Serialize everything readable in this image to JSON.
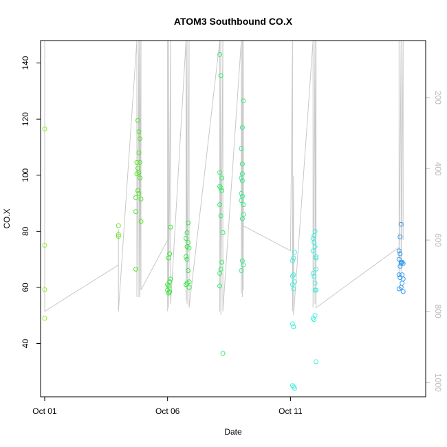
{
  "chart_data": {
    "type": "scatter",
    "title": "ATOM3 Southbound CO.X",
    "xlabel": "Date",
    "ylabel": "CO.X",
    "x_ticks": [
      "Oct 01",
      "Oct 06",
      "Oct 11"
    ],
    "y_ticks": [
      "40",
      "60",
      "80",
      "100",
      "120",
      "140"
    ],
    "y2_ticks": [
      "200",
      "400",
      "600",
      "800",
      "1000"
    ],
    "y2_note": "secondary axis (pressure, inverted) drawn in light grey",
    "xlim": [
      "2016-09-30T20:00",
      "2016-10-16T12:00"
    ],
    "ylim": [
      21,
      148
    ],
    "y2lim": [
      40,
      1040
    ],
    "grid": false,
    "points": [
      {
        "x": "2016-10-01T00:00",
        "y": 116.5,
        "c": "#88ee22"
      },
      {
        "x": "2016-10-01T00:00",
        "y": 75.0,
        "c": "#88ee22"
      },
      {
        "x": "2016-10-01T00:00",
        "y": 59.2,
        "c": "#88ee22"
      },
      {
        "x": "2016-10-01T00:00",
        "y": 49.0,
        "c": "#88ee22"
      },
      {
        "x": "2016-10-04T00:00",
        "y": 82.0,
        "c": "#66e622"
      },
      {
        "x": "2016-10-04T00:00",
        "y": 78.8,
        "c": "#66e622"
      },
      {
        "x": "2016-10-04T00:00",
        "y": 78.2,
        "c": "#66e622"
      },
      {
        "x": "2016-10-04T19:00",
        "y": 119.5,
        "c": "#4ee622"
      },
      {
        "x": "2016-10-04T20:00",
        "y": 115.5,
        "c": "#4ee622"
      },
      {
        "x": "2016-10-04T21:00",
        "y": 113.0,
        "c": "#4ee622"
      },
      {
        "x": "2016-10-04T20:00",
        "y": 108.0,
        "c": "#4ee622"
      },
      {
        "x": "2016-10-04T18:00",
        "y": 104.5,
        "c": "#4ee622"
      },
      {
        "x": "2016-10-04T21:00",
        "y": 104.5,
        "c": "#4ee622"
      },
      {
        "x": "2016-10-04T19:00",
        "y": 102.5,
        "c": "#4ee622"
      },
      {
        "x": "2016-10-04T20:00",
        "y": 101.0,
        "c": "#4ee622"
      },
      {
        "x": "2016-10-04T18:00",
        "y": 100.5,
        "c": "#4ee622"
      },
      {
        "x": "2016-10-04T21:00",
        "y": 99.0,
        "c": "#4ee622"
      },
      {
        "x": "2016-10-04T19:00",
        "y": 94.5,
        "c": "#4ee622"
      },
      {
        "x": "2016-10-04T20:00",
        "y": 93.5,
        "c": "#4ee622"
      },
      {
        "x": "2016-10-04T17:00",
        "y": 92.0,
        "c": "#4ee622"
      },
      {
        "x": "2016-10-04T22:00",
        "y": 91.5,
        "c": "#4ee622"
      },
      {
        "x": "2016-10-04T17:00",
        "y": 87.0,
        "c": "#4ee622"
      },
      {
        "x": "2016-10-04T22:00",
        "y": 83.5,
        "c": "#4ee622"
      },
      {
        "x": "2016-10-04T17:00",
        "y": 66.5,
        "c": "#4ee622"
      },
      {
        "x": "2016-10-06T03:00",
        "y": 81.5,
        "c": "#33e633"
      },
      {
        "x": "2016-10-06T02:00",
        "y": 72.0,
        "c": "#33e633"
      },
      {
        "x": "2016-10-06T01:00",
        "y": 70.5,
        "c": "#33e633"
      },
      {
        "x": "2016-10-06T03:00",
        "y": 63.0,
        "c": "#33e633"
      },
      {
        "x": "2016-10-06T02:00",
        "y": 62.0,
        "c": "#33e633"
      },
      {
        "x": "2016-10-06T00:00",
        "y": 61.0,
        "c": "#33e633"
      },
      {
        "x": "2016-10-06T01:00",
        "y": 60.5,
        "c": "#33e633"
      },
      {
        "x": "2016-10-06T00:00",
        "y": 59.0,
        "c": "#33e633"
      },
      {
        "x": "2016-10-06T02:00",
        "y": 58.5,
        "c": "#33e633"
      },
      {
        "x": "2016-10-06T01:00",
        "y": 58.0,
        "c": "#33e633"
      },
      {
        "x": "2016-10-06T20:00",
        "y": 83.0,
        "c": "#33e644"
      },
      {
        "x": "2016-10-06T19:00",
        "y": 79.5,
        "c": "#33e644"
      },
      {
        "x": "2016-10-06T18:00",
        "y": 77.5,
        "c": "#33e644"
      },
      {
        "x": "2016-10-06T20:00",
        "y": 76.0,
        "c": "#33e644"
      },
      {
        "x": "2016-10-06T19:00",
        "y": 74.5,
        "c": "#33e644"
      },
      {
        "x": "2016-10-06T21:00",
        "y": 74.0,
        "c": "#33e644"
      },
      {
        "x": "2016-10-06T18:00",
        "y": 71.0,
        "c": "#33e644"
      },
      {
        "x": "2016-10-06T19:00",
        "y": 70.0,
        "c": "#33e644"
      },
      {
        "x": "2016-10-06T20:00",
        "y": 66.0,
        "c": "#33e644"
      },
      {
        "x": "2016-10-06T21:00",
        "y": 62.0,
        "c": "#33e644"
      },
      {
        "x": "2016-10-06T19:00",
        "y": 61.5,
        "c": "#33e644"
      },
      {
        "x": "2016-10-06T18:00",
        "y": 61.0,
        "c": "#33e644"
      },
      {
        "x": "2016-10-06T21:00",
        "y": 60.0,
        "c": "#33e644"
      },
      {
        "x": "2016-10-08T03:00",
        "y": 143.0,
        "c": "#33ee66"
      },
      {
        "x": "2016-10-08T04:00",
        "y": 135.5,
        "c": "#33ee66"
      },
      {
        "x": "2016-10-08T03:00",
        "y": 101.0,
        "c": "#33ee66"
      },
      {
        "x": "2016-10-08T05:00",
        "y": 99.0,
        "c": "#33ee66"
      },
      {
        "x": "2016-10-08T03:00",
        "y": 96.0,
        "c": "#33ee66"
      },
      {
        "x": "2016-10-08T04:00",
        "y": 95.5,
        "c": "#33ee66"
      },
      {
        "x": "2016-10-08T05:00",
        "y": 94.5,
        "c": "#33ee66"
      },
      {
        "x": "2016-10-08T03:00",
        "y": 89.5,
        "c": "#33ee66"
      },
      {
        "x": "2016-10-08T04:00",
        "y": 85.5,
        "c": "#33ee66"
      },
      {
        "x": "2016-10-08T06:00",
        "y": 79.5,
        "c": "#33ee66"
      },
      {
        "x": "2016-10-08T05:00",
        "y": 69.0,
        "c": "#33ee66"
      },
      {
        "x": "2016-10-08T04:00",
        "y": 66.5,
        "c": "#33ee66"
      },
      {
        "x": "2016-10-08T03:00",
        "y": 65.0,
        "c": "#33ee66"
      },
      {
        "x": "2016-10-08T03:00",
        "y": 60.5,
        "c": "#33ee66"
      },
      {
        "x": "2016-10-08T06:00",
        "y": 36.5,
        "c": "#33ee66"
      },
      {
        "x": "2016-10-09T02:00",
        "y": 126.5,
        "c": "#33ee88"
      },
      {
        "x": "2016-10-09T01:00",
        "y": 117.0,
        "c": "#33ee88"
      },
      {
        "x": "2016-10-09T00:00",
        "y": 109.5,
        "c": "#33ee88"
      },
      {
        "x": "2016-10-09T01:00",
        "y": 104.0,
        "c": "#33ee88"
      },
      {
        "x": "2016-10-09T01:00",
        "y": 100.5,
        "c": "#33ee88"
      },
      {
        "x": "2016-10-09T00:00",
        "y": 99.0,
        "c": "#33ee88"
      },
      {
        "x": "2016-10-09T01:00",
        "y": 98.0,
        "c": "#33ee88"
      },
      {
        "x": "2016-10-09T00:00",
        "y": 93.5,
        "c": "#33ee88"
      },
      {
        "x": "2016-10-09T01:00",
        "y": 92.5,
        "c": "#33ee88"
      },
      {
        "x": "2016-10-09T00:00",
        "y": 91.0,
        "c": "#33ee88"
      },
      {
        "x": "2016-10-09T02:00",
        "y": 89.5,
        "c": "#33ee88"
      },
      {
        "x": "2016-10-09T02:00",
        "y": 86.0,
        "c": "#33ee88"
      },
      {
        "x": "2016-10-09T01:00",
        "y": 84.5,
        "c": "#33ee88"
      },
      {
        "x": "2016-10-09T01:00",
        "y": 69.5,
        "c": "#33ee88"
      },
      {
        "x": "2016-10-09T02:00",
        "y": 68.0,
        "c": "#33ee88"
      },
      {
        "x": "2016-10-09T00:00",
        "y": 66.0,
        "c": "#33ee88"
      },
      {
        "x": "2016-10-11T04:00",
        "y": 72.5,
        "c": "#44eedd"
      },
      {
        "x": "2016-10-11T03:00",
        "y": 70.5,
        "c": "#44eedd"
      },
      {
        "x": "2016-10-11T02:00",
        "y": 69.5,
        "c": "#44eedd"
      },
      {
        "x": "2016-10-11T03:00",
        "y": 64.5,
        "c": "#44eedd"
      },
      {
        "x": "2016-10-11T02:00",
        "y": 64.0,
        "c": "#44eedd"
      },
      {
        "x": "2016-10-11T04:00",
        "y": 62.0,
        "c": "#44eedd"
      },
      {
        "x": "2016-10-11T02:00",
        "y": 61.0,
        "c": "#44eedd"
      },
      {
        "x": "2016-10-11T03:00",
        "y": 59.5,
        "c": "#44eedd"
      },
      {
        "x": "2016-10-11T02:00",
        "y": 47.0,
        "c": "#44eedd"
      },
      {
        "x": "2016-10-11T03:00",
        "y": 46.0,
        "c": "#44eedd"
      },
      {
        "x": "2016-10-11T02:00",
        "y": 25.0,
        "c": "#44eedd"
      },
      {
        "x": "2016-10-11T03:00",
        "y": 24.5,
        "c": "#44eedd"
      },
      {
        "x": "2016-10-11T04:00",
        "y": 24.0,
        "c": "#44eedd"
      },
      {
        "x": "2016-10-12T00:00",
        "y": 80.0,
        "c": "#44eedd"
      },
      {
        "x": "2016-10-11T23:00",
        "y": 78.5,
        "c": "#44eedd"
      },
      {
        "x": "2016-10-11T22:00",
        "y": 77.5,
        "c": "#44eedd"
      },
      {
        "x": "2016-10-11T23:00",
        "y": 76.0,
        "c": "#44eedd"
      },
      {
        "x": "2016-10-12T00:00",
        "y": 74.5,
        "c": "#44eedd"
      },
      {
        "x": "2016-10-11T22:00",
        "y": 73.0,
        "c": "#44eedd"
      },
      {
        "x": "2016-10-12T01:00",
        "y": 71.0,
        "c": "#44eedd"
      },
      {
        "x": "2016-10-12T01:00",
        "y": 70.5,
        "c": "#44eedd"
      },
      {
        "x": "2016-10-12T01:00",
        "y": 66.5,
        "c": "#44eedd"
      },
      {
        "x": "2016-10-11T22:00",
        "y": 65.0,
        "c": "#44eedd"
      },
      {
        "x": "2016-10-11T23:00",
        "y": 64.0,
        "c": "#44eedd"
      },
      {
        "x": "2016-10-12T00:00",
        "y": 61.5,
        "c": "#44eedd"
      },
      {
        "x": "2016-10-12T00:00",
        "y": 59.0,
        "c": "#44eedd"
      },
      {
        "x": "2016-10-12T01:00",
        "y": 59.0,
        "c": "#44eedd"
      },
      {
        "x": "2016-10-12T00:00",
        "y": 50.0,
        "c": "#44eedd"
      },
      {
        "x": "2016-10-11T22:00",
        "y": 49.0,
        "c": "#44eedd"
      },
      {
        "x": "2016-10-11T23:00",
        "y": 48.5,
        "c": "#44eedd"
      },
      {
        "x": "2016-10-12T01:00",
        "y": 33.5,
        "c": "#44eedd"
      },
      {
        "x": "2016-10-15T12:00",
        "y": 82.5,
        "c": "#3399ee"
      },
      {
        "x": "2016-10-15T11:00",
        "y": 78.0,
        "c": "#3399ee"
      },
      {
        "x": "2016-10-15T10:00",
        "y": 73.0,
        "c": "#3399ee"
      },
      {
        "x": "2016-10-15T11:00",
        "y": 72.0,
        "c": "#3399ee"
      },
      {
        "x": "2016-10-15T10:00",
        "y": 70.0,
        "c": "#3399ee"
      },
      {
        "x": "2016-10-15T12:00",
        "y": 69.0,
        "c": "#3399ee"
      },
      {
        "x": "2016-10-15T13:00",
        "y": 69.0,
        "c": "#3399ee"
      },
      {
        "x": "2016-10-15T12:00",
        "y": 68.5,
        "c": "#3399ee"
      },
      {
        "x": "2016-10-15T14:00",
        "y": 68.5,
        "c": "#3399ee"
      },
      {
        "x": "2016-10-15T11:00",
        "y": 67.5,
        "c": "#3399ee"
      },
      {
        "x": "2016-10-15T10:00",
        "y": 64.5,
        "c": "#3399ee"
      },
      {
        "x": "2016-10-15T13:00",
        "y": 64.5,
        "c": "#3399ee"
      },
      {
        "x": "2016-10-15T11:00",
        "y": 63.5,
        "c": "#3399ee"
      },
      {
        "x": "2016-10-15T14:00",
        "y": 63.0,
        "c": "#3399ee"
      },
      {
        "x": "2016-10-15T13:00",
        "y": 61.5,
        "c": "#3399ee"
      },
      {
        "x": "2016-10-15T12:00",
        "y": 60.0,
        "c": "#3399ee"
      },
      {
        "x": "2016-10-15T10:00",
        "y": 59.5,
        "c": "#3399ee"
      },
      {
        "x": "2016-10-15T14:00",
        "y": 58.5,
        "c": "#3399ee"
      }
    ],
    "pressure_trace": {
      "color": "#c8c8c8",
      "path": [
        [
          "2016-10-01T00:00",
          40
        ],
        [
          "2016-10-01T00:00",
          800
        ],
        [
          "2016-10-04T00:00",
          670
        ],
        [
          "2016-10-04T00:00",
          570
        ],
        [
          "2016-10-04T00:00",
          800
        ],
        [
          "2016-10-04T18:00",
          40
        ],
        [
          "2016-10-04T18:00",
          760
        ],
        [
          "2016-10-04T20:00",
          40
        ],
        [
          "2016-10-04T20:00",
          760
        ],
        [
          "2016-10-04T21:00",
          40
        ],
        [
          "2016-10-04T21:00",
          760
        ],
        [
          "2016-10-04T22:00",
          40
        ],
        [
          "2016-10-04T22:00",
          740
        ],
        [
          "2016-10-06T00:00",
          600
        ],
        [
          "2016-10-06T00:00",
          40
        ],
        [
          "2016-10-06T00:00",
          800
        ],
        [
          "2016-10-06T01:00",
          40
        ],
        [
          "2016-10-06T01:00",
          790
        ],
        [
          "2016-10-06T03:00",
          40
        ],
        [
          "2016-10-06T03:00",
          780
        ],
        [
          "2016-10-06T18:00",
          40
        ],
        [
          "2016-10-06T18:00",
          770
        ],
        [
          "2016-10-06T19:00",
          40
        ],
        [
          "2016-10-06T19:00",
          780
        ],
        [
          "2016-10-06T21:00",
          40
        ],
        [
          "2016-10-06T21:00",
          790
        ],
        [
          "2016-10-08T03:00",
          40
        ],
        [
          "2016-10-08T03:00",
          800
        ],
        [
          "2016-10-08T04:00",
          40
        ],
        [
          "2016-10-08T04:00",
          810
        ],
        [
          "2016-10-08T06:00",
          40
        ],
        [
          "2016-10-08T06:00",
          800
        ],
        [
          "2016-10-09T00:00",
          40
        ],
        [
          "2016-10-09T00:00",
          750
        ],
        [
          "2016-10-09T01:00",
          40
        ],
        [
          "2016-10-09T01:00",
          760
        ],
        [
          "2016-10-09T02:00",
          40
        ],
        [
          "2016-10-09T02:00",
          740
        ],
        [
          "2016-10-09T02:00",
          560
        ],
        [
          "2016-10-11T00:00",
          630
        ],
        [
          "2016-10-11T02:00",
          40
        ],
        [
          "2016-10-11T02:00",
          800
        ],
        [
          "2016-10-11T03:00",
          420
        ],
        [
          "2016-10-11T03:00",
          810
        ],
        [
          "2016-10-11T22:00",
          40
        ],
        [
          "2016-10-11T22:00",
          790
        ],
        [
          "2016-10-12T00:00",
          40
        ],
        [
          "2016-10-12T00:00",
          780
        ],
        [
          "2016-10-12T01:00",
          40
        ],
        [
          "2016-10-12T01:00",
          790
        ],
        [
          "2016-10-15T10:00",
          620
        ],
        [
          "2016-10-15T10:00",
          40
        ],
        [
          "2016-10-15T10:00",
          700
        ],
        [
          "2016-10-15T12:00",
          40
        ],
        [
          "2016-10-15T12:00",
          690
        ],
        [
          "2016-10-15T14:00",
          40
        ],
        [
          "2016-10-15T14:00",
          600
        ]
      ]
    }
  }
}
